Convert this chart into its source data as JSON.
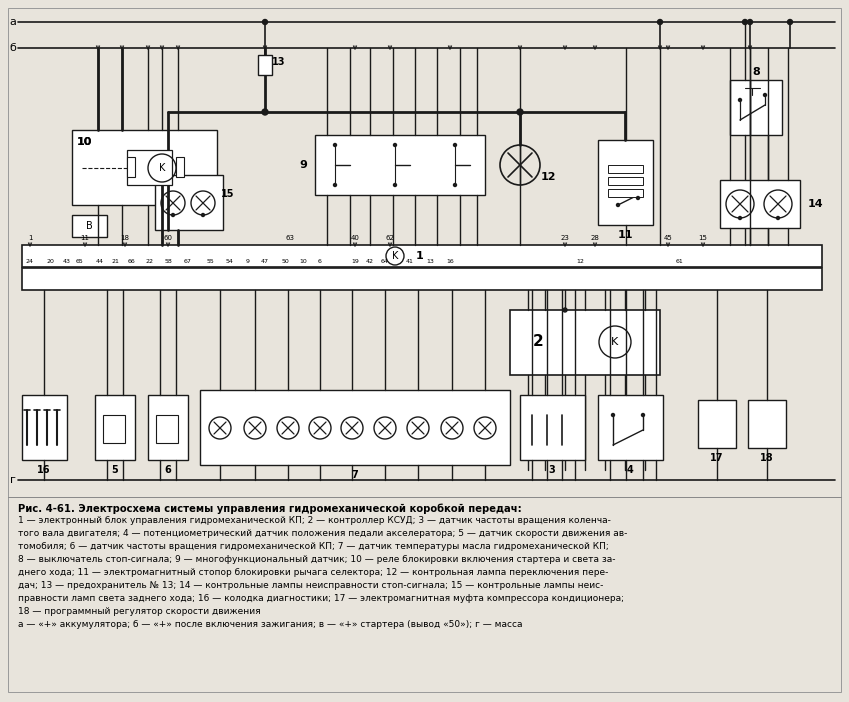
{
  "bg_color": "#e8e4dc",
  "line_color": "#1a1a1a",
  "fig_width": 8.49,
  "fig_height": 7.02,
  "dpi": 100,
  "title_bold": "Рис. 4-61. Электросхема системы управления гидромеханической коробкой передач:",
  "caption_lines": [
    "1 — электронный блок управления гидромеханической КП; 2 — контроллер КСУД; 3 — датчик частоты вращения коленча-",
    "того вала двигателя; 4 — потенциометрический датчик положения педали акселератора; 5 — датчик скорости движения ав-",
    "томобиля; 6 — датчик частоты вращения гидромеханической КП; 7 — датчик температуры масла гидромеханической КП;",
    "8 — выключатель стоп-сигнала; 9 — многофункциональный датчик; 10 — реле блокировки включения стартера и света за-",
    "днего хода; 11 — электромагнитный стопор блокировки рычага селектора; 12 — контрольная лампа переключения пере-",
    "дач; 13 — предохранитель № 13; 14 — контрольные лампы неисправности стоп-сигнала; 15 — контрольные лампы неис-",
    "правности ламп света заднего хода; 16 — колодка диагностики; 17 — электромагнитная муфта компрессора кондиционера;",
    "18 — программный регулятор скорости движения",
    "а — «+» аккумулятора; б — «+» после включения зажигания; в — «+» стартера (вывод «50»); г — масса"
  ]
}
